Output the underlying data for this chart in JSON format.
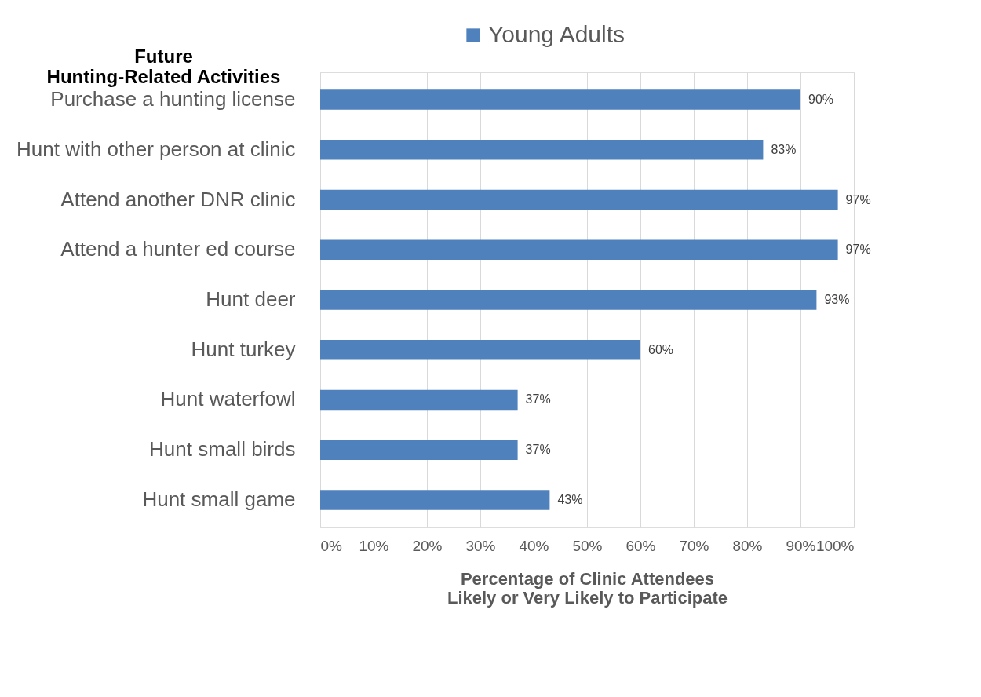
{
  "chart_data": {
    "type": "bar",
    "orientation": "horizontal",
    "ylabel": "Future\nHunting-Related Activities",
    "xlabel": "Percentage of Clinic Attendees\nLikely or Very Likely to Participate",
    "categories": [
      "Purchase a hunting license",
      "Hunt with other person at clinic",
      "Attend another DNR clinic",
      "Attend a hunter ed course",
      "Hunt deer",
      "Hunt turkey",
      "Hunt waterfowl",
      "Hunt small birds",
      "Hunt small game"
    ],
    "series": [
      {
        "name": "Young Adults",
        "color": "#4f81bd",
        "values": [
          90,
          83,
          97,
          97,
          93,
          60,
          37,
          37,
          43
        ],
        "value_labels": [
          "90%",
          "83%",
          "97%",
          "97%",
          "93%",
          "60%",
          "37%",
          "37%",
          "43%"
        ]
      }
    ],
    "xlim": [
      0,
      100
    ],
    "xticks": [
      {
        "value": 0,
        "label": "0%"
      },
      {
        "value": 10,
        "label": "10%"
      },
      {
        "value": 20,
        "label": "20%"
      },
      {
        "value": 30,
        "label": "30%"
      },
      {
        "value": 40,
        "label": "40%"
      },
      {
        "value": 50,
        "label": "50%"
      },
      {
        "value": 60,
        "label": "60%"
      },
      {
        "value": 70,
        "label": "70%"
      },
      {
        "value": 80,
        "label": "80%"
      },
      {
        "value": 90,
        "label": "90%"
      },
      {
        "value": 100,
        "label": "100%"
      }
    ],
    "grid": "x",
    "legend": "top"
  }
}
